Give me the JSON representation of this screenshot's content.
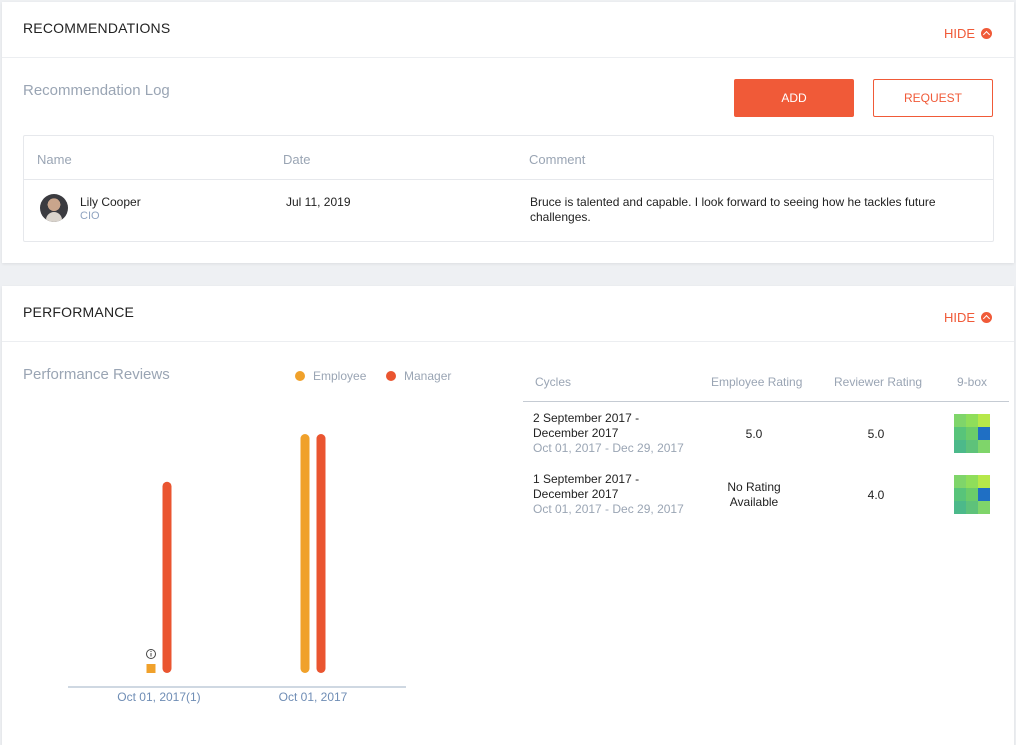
{
  "recommendations": {
    "title": "RECOMMENDATIONS",
    "hide_label": "HIDE",
    "log_title": "Recommendation Log",
    "add_label": "ADD",
    "request_label": "REQUEST",
    "columns": [
      "Name",
      "Date",
      "Comment"
    ],
    "rows": [
      {
        "name": "Lily Cooper",
        "role": "CIO",
        "date": "Jul 11, 2019",
        "comment": "Bruce is talented and capable. I look forward to seeing how he tackles future challenges."
      }
    ]
  },
  "performance": {
    "title": "PERFORMANCE",
    "hide_label": "HIDE",
    "reviews_title": "Performance Reviews",
    "legend": [
      {
        "label": "Employee",
        "color": "#f0a12b"
      },
      {
        "label": "Manager",
        "color": "#ea5530"
      }
    ],
    "columns": [
      "Cycles",
      "Employee Rating",
      "Reviewer Rating",
      "9-box"
    ],
    "cycles": [
      {
        "title": "2 September 2017 - December 2017",
        "range": "Oct 01, 2017 - Dec 29, 2017",
        "employee_rating": "5.0",
        "reviewer_rating": "5.0",
        "ninebox_highlight": {
          "row": 1,
          "col": 2
        }
      },
      {
        "title": "1 September 2017 - December 2017",
        "range": "Oct 01, 2017 - Dec 29, 2017",
        "employee_rating": "No Rating Available",
        "reviewer_rating": "4.0",
        "ninebox_highlight": {
          "row": 1,
          "col": 2
        }
      }
    ],
    "info_icon": "info-icon"
  },
  "chart_data": {
    "type": "bar",
    "categories": [
      "Oct 01, 2017(1)",
      "Oct 01, 2017"
    ],
    "series": [
      {
        "name": "Employee",
        "values": [
          0,
          5.0
        ],
        "color": "#f0a12b"
      },
      {
        "name": "Manager",
        "values": [
          4.0,
          5.0
        ],
        "color": "#ea5530"
      }
    ],
    "ylim": [
      0,
      5
    ],
    "grid": false,
    "legend_position": "top-right"
  }
}
